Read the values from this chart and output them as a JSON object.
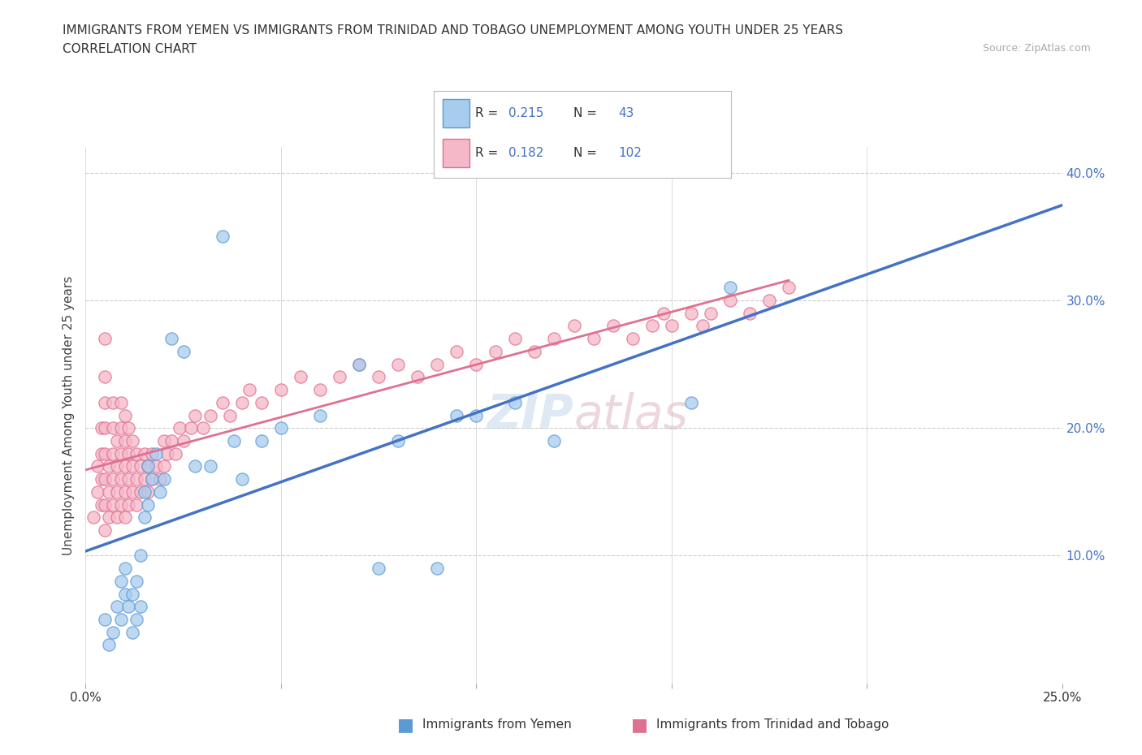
{
  "title_line1": "IMMIGRANTS FROM YEMEN VS IMMIGRANTS FROM TRINIDAD AND TOBAGO UNEMPLOYMENT AMONG YOUTH UNDER 25 YEARS",
  "title_line2": "CORRELATION CHART",
  "source_text": "Source: ZipAtlas.com",
  "ylabel": "Unemployment Among Youth under 25 years",
  "xlim": [
    0.0,
    0.25
  ],
  "ylim": [
    0.0,
    0.42
  ],
  "x_ticks": [
    0.0,
    0.05,
    0.1,
    0.15,
    0.2,
    0.25
  ],
  "x_tick_labels": [
    "0.0%",
    "",
    "",
    "",
    "",
    "25.0%"
  ],
  "y_ticks": [
    0.0,
    0.1,
    0.2,
    0.3,
    0.4
  ],
  "y_tick_labels_right": [
    "",
    "10.0%",
    "20.0%",
    "30.0%",
    "40.0%"
  ],
  "legend1_label": "Immigrants from Yemen",
  "legend2_label": "Immigrants from Trinidad and Tobago",
  "R1": 0.215,
  "N1": 43,
  "R2": 0.182,
  "N2": 102,
  "color_yemen": "#A8CCEE",
  "color_yemen_edge": "#5B9BD5",
  "color_tt": "#F5B8C8",
  "color_tt_edge": "#E07090",
  "trendline_color_yemen": "#4472C4",
  "trendline_color_tt": "#E07090",
  "watermark": "ZIPatlas",
  "yemen_x": [
    0.005,
    0.006,
    0.007,
    0.008,
    0.009,
    0.009,
    0.01,
    0.01,
    0.011,
    0.012,
    0.012,
    0.013,
    0.013,
    0.014,
    0.014,
    0.015,
    0.015,
    0.016,
    0.016,
    0.017,
    0.018,
    0.019,
    0.02,
    0.022,
    0.025,
    0.028,
    0.032,
    0.035,
    0.038,
    0.04,
    0.045,
    0.05,
    0.06,
    0.07,
    0.075,
    0.08,
    0.09,
    0.095,
    0.1,
    0.11,
    0.12,
    0.155,
    0.165
  ],
  "yemen_y": [
    0.05,
    0.03,
    0.04,
    0.06,
    0.05,
    0.08,
    0.07,
    0.09,
    0.06,
    0.04,
    0.07,
    0.05,
    0.08,
    0.06,
    0.1,
    0.13,
    0.15,
    0.14,
    0.17,
    0.16,
    0.18,
    0.15,
    0.16,
    0.27,
    0.26,
    0.17,
    0.17,
    0.35,
    0.19,
    0.16,
    0.19,
    0.2,
    0.21,
    0.25,
    0.09,
    0.19,
    0.09,
    0.21,
    0.21,
    0.22,
    0.19,
    0.22,
    0.31
  ],
  "tt_x": [
    0.002,
    0.003,
    0.003,
    0.004,
    0.004,
    0.004,
    0.004,
    0.005,
    0.005,
    0.005,
    0.005,
    0.005,
    0.005,
    0.005,
    0.005,
    0.006,
    0.006,
    0.006,
    0.007,
    0.007,
    0.007,
    0.007,
    0.007,
    0.008,
    0.008,
    0.008,
    0.008,
    0.009,
    0.009,
    0.009,
    0.009,
    0.009,
    0.01,
    0.01,
    0.01,
    0.01,
    0.01,
    0.011,
    0.011,
    0.011,
    0.011,
    0.012,
    0.012,
    0.012,
    0.013,
    0.013,
    0.013,
    0.014,
    0.014,
    0.015,
    0.015,
    0.016,
    0.016,
    0.017,
    0.017,
    0.018,
    0.019,
    0.02,
    0.02,
    0.021,
    0.022,
    0.023,
    0.024,
    0.025,
    0.027,
    0.028,
    0.03,
    0.032,
    0.035,
    0.037,
    0.04,
    0.042,
    0.045,
    0.05,
    0.055,
    0.06,
    0.065,
    0.07,
    0.075,
    0.08,
    0.085,
    0.09,
    0.095,
    0.1,
    0.105,
    0.11,
    0.115,
    0.12,
    0.125,
    0.13,
    0.135,
    0.14,
    0.145,
    0.148,
    0.15,
    0.155,
    0.158,
    0.16,
    0.165,
    0.17,
    0.175,
    0.18
  ],
  "tt_y": [
    0.13,
    0.15,
    0.17,
    0.14,
    0.16,
    0.18,
    0.2,
    0.12,
    0.14,
    0.16,
    0.18,
    0.2,
    0.22,
    0.24,
    0.27,
    0.13,
    0.15,
    0.17,
    0.14,
    0.16,
    0.18,
    0.2,
    0.22,
    0.13,
    0.15,
    0.17,
    0.19,
    0.14,
    0.16,
    0.18,
    0.2,
    0.22,
    0.13,
    0.15,
    0.17,
    0.19,
    0.21,
    0.14,
    0.16,
    0.18,
    0.2,
    0.15,
    0.17,
    0.19,
    0.14,
    0.16,
    0.18,
    0.15,
    0.17,
    0.16,
    0.18,
    0.15,
    0.17,
    0.16,
    0.18,
    0.17,
    0.16,
    0.17,
    0.19,
    0.18,
    0.19,
    0.18,
    0.2,
    0.19,
    0.2,
    0.21,
    0.2,
    0.21,
    0.22,
    0.21,
    0.22,
    0.23,
    0.22,
    0.23,
    0.24,
    0.23,
    0.24,
    0.25,
    0.24,
    0.25,
    0.24,
    0.25,
    0.26,
    0.25,
    0.26,
    0.27,
    0.26,
    0.27,
    0.28,
    0.27,
    0.28,
    0.27,
    0.28,
    0.29,
    0.28,
    0.29,
    0.28,
    0.29,
    0.3,
    0.29,
    0.3,
    0.31
  ]
}
